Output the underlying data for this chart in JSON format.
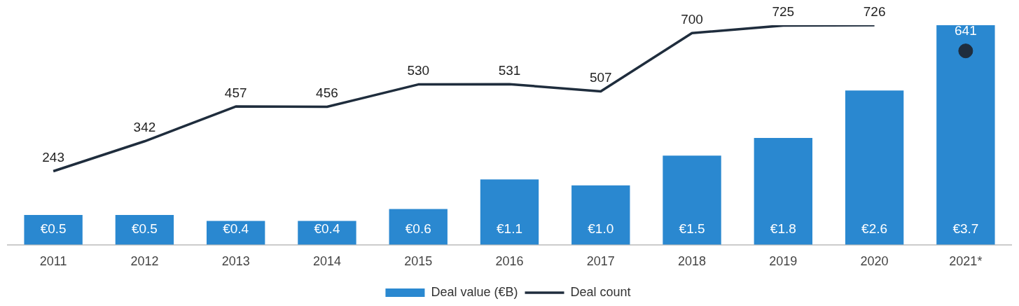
{
  "chart_data": {
    "type": "bar",
    "categories": [
      "2011",
      "2012",
      "2013",
      "2014",
      "2015",
      "2016",
      "2017",
      "2018",
      "2019",
      "2020",
      "2021*"
    ],
    "legend": "bottom",
    "series": [
      {
        "name": "Deal value (€B)",
        "color": "#2a88d0",
        "values": [
          0.5,
          0.5,
          0.4,
          0.4,
          0.6,
          1.1,
          1.0,
          1.5,
          1.8,
          2.6,
          3.7
        ],
        "value_labels": [
          "€0.5",
          "€0.5",
          "€0.4",
          "€0.4",
          "€0.6",
          "€1.1",
          "€1.0",
          "€1.5",
          "€1.8",
          "€2.6",
          "€3.7"
        ]
      },
      {
        "name": "Deal count",
        "type": "line",
        "axis": "y2",
        "color": "#1f2d3d",
        "marker": "none",
        "values": [
          243,
          342,
          457,
          456,
          530,
          531,
          507,
          700,
          725,
          726,
          null
        ],
        "value_labels": [
          "243",
          "342",
          "457",
          "456",
          "530",
          "531",
          "507",
          "700",
          "725",
          "726",
          null
        ]
      },
      {
        "type": "scatter",
        "axis": "y2",
        "color": "#1f2d3d",
        "marker": "circle",
        "x": [
          "2021*"
        ],
        "values": [
          641
        ],
        "value_labels": [
          "641"
        ]
      }
    ]
  }
}
